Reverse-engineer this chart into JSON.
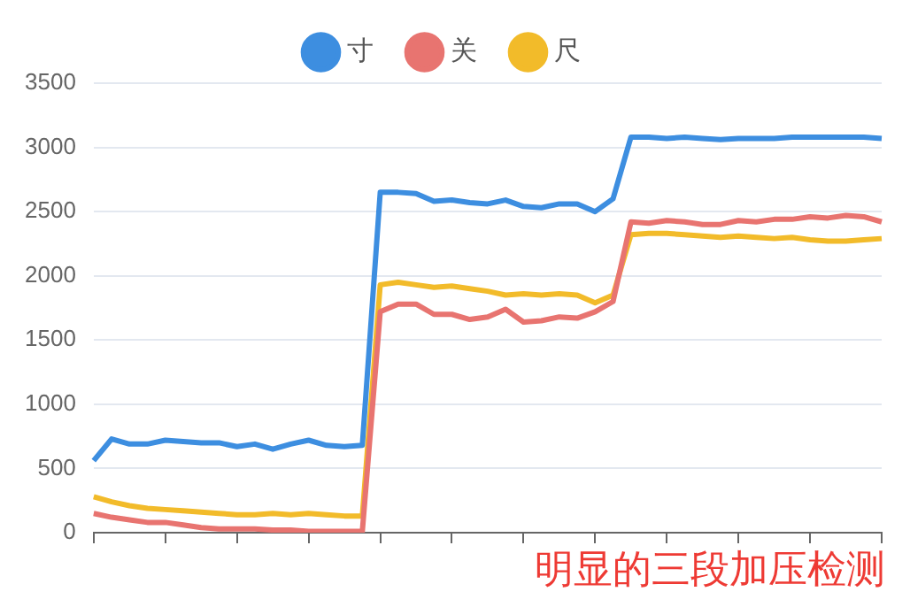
{
  "chart_data": {
    "type": "line",
    "categories": [
      null,
      null,
      null,
      null,
      null,
      null,
      null,
      null,
      null,
      null,
      null,
      null,
      null,
      null,
      null,
      null,
      null,
      null,
      null,
      null,
      null,
      null,
      null,
      null,
      null,
      null,
      null,
      null,
      null,
      null,
      null,
      null,
      null,
      null,
      null,
      null,
      null,
      null,
      null,
      null,
      null,
      null,
      null,
      null,
      null
    ],
    "series": [
      {
        "name": "寸",
        "color": "#3d8ee0",
        "values": [
          560,
          730,
          690,
          690,
          720,
          710,
          700,
          700,
          670,
          690,
          650,
          690,
          720,
          680,
          670,
          680,
          2650,
          2650,
          2640,
          2580,
          2590,
          2570,
          2560,
          2590,
          2540,
          2530,
          2560,
          2560,
          2500,
          2600,
          3080,
          3080,
          3070,
          3080,
          3070,
          3060,
          3070,
          3070,
          3070,
          3080,
          3080,
          3080,
          3080,
          3080,
          3070
        ]
      },
      {
        "name": "关",
        "color": "#e87470",
        "values": [
          150,
          120,
          100,
          80,
          80,
          60,
          40,
          30,
          30,
          30,
          20,
          20,
          10,
          10,
          10,
          10,
          1720,
          1780,
          1780,
          1700,
          1700,
          1660,
          1680,
          1740,
          1640,
          1650,
          1680,
          1670,
          1720,
          1800,
          2420,
          2410,
          2430,
          2420,
          2400,
          2400,
          2430,
          2420,
          2440,
          2440,
          2460,
          2450,
          2470,
          2460,
          2420
        ]
      },
      {
        "name": "尺",
        "color": "#f2bb2a",
        "values": [
          280,
          240,
          210,
          190,
          180,
          170,
          160,
          150,
          140,
          140,
          150,
          140,
          150,
          140,
          130,
          130,
          1930,
          1950,
          1930,
          1910,
          1920,
          1900,
          1880,
          1850,
          1860,
          1850,
          1860,
          1850,
          1790,
          1850,
          2320,
          2330,
          2330,
          2320,
          2310,
          2300,
          2310,
          2300,
          2290,
          2300,
          2280,
          2270,
          2270,
          2280,
          2290
        ]
      }
    ],
    "ylim": [
      0,
      3500
    ],
    "yticks": [
      0,
      500,
      1000,
      1500,
      2000,
      2500,
      3000,
      3500
    ],
    "grid": "y",
    "legend": "top",
    "marker": "none",
    "line_style": "solid",
    "tick_labels": "y",
    "annotations": [
      "明显的三段加压检测"
    ]
  }
}
